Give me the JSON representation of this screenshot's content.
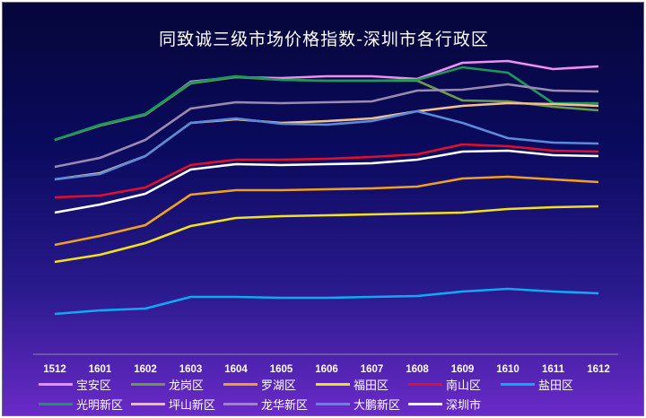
{
  "chart_data": {
    "type": "line",
    "title": "同致诚三级市场价格指数-深圳市各行政区",
    "x": [
      "1512",
      "1601",
      "1602",
      "1603",
      "1604",
      "1605",
      "1606",
      "1607",
      "1608",
      "1609",
      "1610",
      "1611",
      "1612"
    ],
    "grid": false,
    "legend_position": "bottom",
    "series": [
      {
        "name": "宝安区",
        "color": "#f08ef0",
        "values": [
          153,
          137,
          125,
          88,
          83,
          84,
          82,
          82,
          85,
          67,
          65,
          74,
          71
        ]
      },
      {
        "name": "龙岗区",
        "color": "#6a9a4a",
        "values": [
          153,
          137,
          125,
          90,
          83,
          86,
          87,
          87,
          87,
          109,
          110,
          116,
          120
        ]
      },
      {
        "name": "罗湖区",
        "color": "#f0a020",
        "values": [
          270,
          260,
          248,
          214,
          209,
          209,
          208,
          207,
          205,
          196,
          194,
          197,
          200
        ]
      },
      {
        "name": "福田区",
        "color": "#f0e020",
        "values": [
          289,
          281,
          268,
          249,
          240,
          238,
          237,
          236,
          235,
          234,
          230,
          228,
          227
        ]
      },
      {
        "name": "南山区",
        "color": "#e0102a",
        "values": [
          217,
          215,
          206,
          181,
          175,
          175,
          174,
          172,
          169,
          158,
          160,
          165,
          166
        ]
      },
      {
        "name": "盐田区",
        "color": "#10a8f0",
        "values": [
          347,
          343,
          341,
          328,
          328,
          329,
          329,
          328,
          327,
          322,
          319,
          322,
          324
        ]
      },
      {
        "name": "光明新区",
        "color": "#1a9a5a",
        "values": [
          153,
          136,
          124,
          89,
          82,
          86,
          87,
          87,
          86,
          72,
          78,
          112,
          112
        ]
      },
      {
        "name": "坪山新区",
        "color": "#f0c090",
        "values": [
          197,
          190,
          171,
          134,
          130,
          134,
          132,
          129,
          121,
          115,
          112,
          113,
          115
        ]
      },
      {
        "name": "龙华新区",
        "color": "#9a8ab0",
        "values": [
          183,
          173,
          153,
          118,
          111,
          112,
          111,
          110,
          98,
          97,
          91,
          98,
          99
        ]
      },
      {
        "name": "大鹏新区",
        "color": "#5a8ad8",
        "values": [
          197,
          191,
          171,
          134,
          129,
          135,
          136,
          132,
          121,
          134,
          151,
          156,
          157
        ]
      },
      {
        "name": "深圳市",
        "color": "#ffffff",
        "values": [
          234,
          225,
          213,
          186,
          180,
          181,
          180,
          179,
          175,
          166,
          165,
          170,
          171
        ]
      }
    ]
  }
}
